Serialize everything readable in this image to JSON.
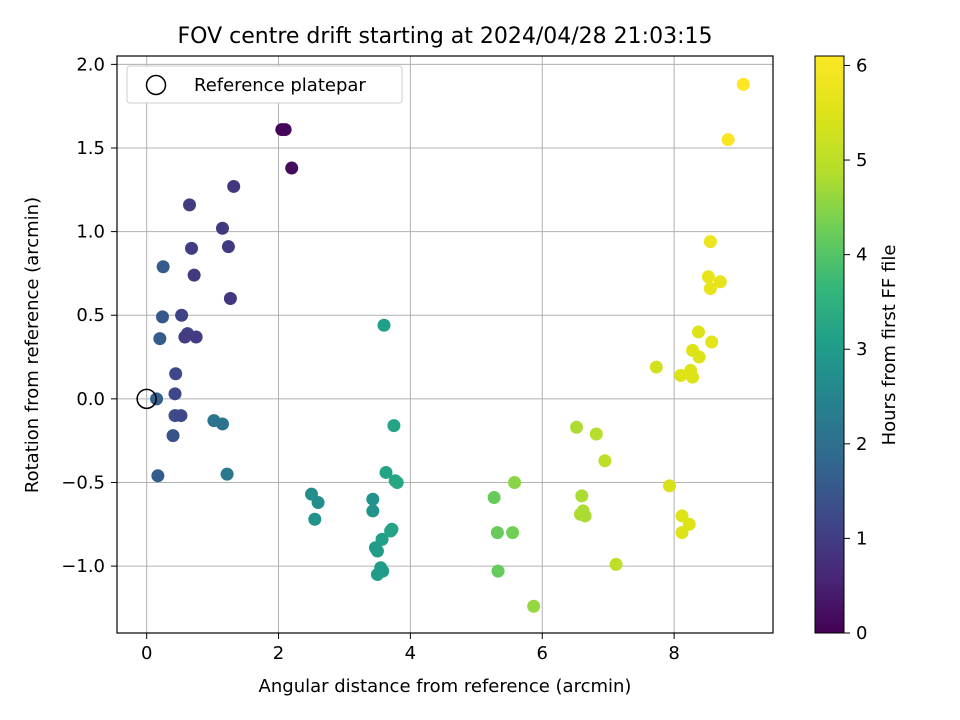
{
  "chart_data": {
    "type": "scatter",
    "title": "FOV centre drift starting at 2024/04/28 21:03:15",
    "xlabel": "Angular distance from reference (arcmin)",
    "ylabel": "Rotation from reference (arcmin)",
    "xlim": [
      -0.45,
      9.5
    ],
    "ylim": [
      -1.4,
      2.05
    ],
    "xticks": [
      0,
      2,
      4,
      6,
      8
    ],
    "xtick_labels": [
      "0",
      "2",
      "4",
      "6",
      "8"
    ],
    "yticks": [
      -1.0,
      -0.5,
      0.0,
      0.5,
      1.0,
      1.5,
      2.0
    ],
    "ytick_labels": [
      "−1.0",
      "−0.5",
      "0.0",
      "0.5",
      "1.0",
      "1.5",
      "2.0"
    ],
    "grid": true,
    "legend": {
      "position": "top-left",
      "entries": [
        {
          "label": "Reference platepar",
          "marker": "open-circle"
        }
      ]
    },
    "reference_point": {
      "x": 0,
      "y": 0
    },
    "colorbar": {
      "label": "Hours from first FF file",
      "colormap": "viridis",
      "range": [
        0,
        6.1
      ],
      "ticks": [
        0,
        1,
        2,
        3,
        4,
        5,
        6
      ],
      "tick_labels": [
        "0",
        "1",
        "2",
        "3",
        "4",
        "5",
        "6"
      ]
    },
    "series": [
      {
        "points": [
          {
            "x": 2.05,
            "y": 1.61,
            "t": 0.05
          },
          {
            "x": 2.1,
            "y": 1.61,
            "t": 0.08
          },
          {
            "x": 2.2,
            "y": 1.38,
            "t": 0.15
          },
          {
            "x": 1.32,
            "y": 1.27,
            "t": 0.9
          },
          {
            "x": 0.65,
            "y": 1.16,
            "t": 1.0
          },
          {
            "x": 1.15,
            "y": 1.02,
            "t": 0.95
          },
          {
            "x": 1.24,
            "y": 0.91,
            "t": 0.95
          },
          {
            "x": 0.68,
            "y": 0.9,
            "t": 1.0
          },
          {
            "x": 0.72,
            "y": 0.74,
            "t": 0.95
          },
          {
            "x": 1.27,
            "y": 0.6,
            "t": 0.9
          },
          {
            "x": 0.53,
            "y": 0.5,
            "t": 1.1
          },
          {
            "x": 0.62,
            "y": 0.39,
            "t": 1.1
          },
          {
            "x": 0.58,
            "y": 0.37,
            "t": 1.0
          },
          {
            "x": 0.75,
            "y": 0.37,
            "t": 1.0
          },
          {
            "x": 0.25,
            "y": 0.79,
            "t": 1.6
          },
          {
            "x": 0.24,
            "y": 0.49,
            "t": 1.5
          },
          {
            "x": 0.2,
            "y": 0.36,
            "t": 1.6
          },
          {
            "x": 0.44,
            "y": 0.15,
            "t": 1.2
          },
          {
            "x": 0.43,
            "y": 0.03,
            "t": 1.2
          },
          {
            "x": 0.15,
            "y": 0.0,
            "t": 1.7
          },
          {
            "x": 0.43,
            "y": -0.1,
            "t": 1.3
          },
          {
            "x": 0.52,
            "y": -0.1,
            "t": 1.2
          },
          {
            "x": 0.4,
            "y": -0.22,
            "t": 1.4
          },
          {
            "x": 0.17,
            "y": -0.46,
            "t": 1.6
          },
          {
            "x": 1.02,
            "y": -0.13,
            "t": 2.1
          },
          {
            "x": 1.15,
            "y": -0.15,
            "t": 2.1
          },
          {
            "x": 1.22,
            "y": -0.45,
            "t": 2.2
          },
          {
            "x": 3.6,
            "y": 0.44,
            "t": 3.1
          },
          {
            "x": 3.75,
            "y": -0.16,
            "t": 3.2
          },
          {
            "x": 3.63,
            "y": -0.44,
            "t": 3.2
          },
          {
            "x": 3.77,
            "y": -0.49,
            "t": 3.2
          },
          {
            "x": 3.8,
            "y": -0.5,
            "t": 3.3
          },
          {
            "x": 2.5,
            "y": -0.57,
            "t": 2.7
          },
          {
            "x": 2.6,
            "y": -0.62,
            "t": 2.7
          },
          {
            "x": 2.55,
            "y": -0.72,
            "t": 2.8
          },
          {
            "x": 3.43,
            "y": -0.6,
            "t": 2.8
          },
          {
            "x": 3.43,
            "y": -0.67,
            "t": 2.8
          },
          {
            "x": 3.72,
            "y": -0.78,
            "t": 3.2
          },
          {
            "x": 3.7,
            "y": -0.79,
            "t": 3.2
          },
          {
            "x": 3.57,
            "y": -0.84,
            "t": 3.1
          },
          {
            "x": 3.47,
            "y": -0.89,
            "t": 3.0
          },
          {
            "x": 3.5,
            "y": -0.91,
            "t": 3.0
          },
          {
            "x": 3.55,
            "y": -1.01,
            "t": 3.0
          },
          {
            "x": 3.58,
            "y": -1.03,
            "t": 3.0
          },
          {
            "x": 3.5,
            "y": -1.05,
            "t": 3.0
          },
          {
            "x": 5.58,
            "y": -0.5,
            "t": 4.5
          },
          {
            "x": 5.27,
            "y": -0.59,
            "t": 4.2
          },
          {
            "x": 5.32,
            "y": -0.8,
            "t": 4.2
          },
          {
            "x": 5.55,
            "y": -0.8,
            "t": 4.3
          },
          {
            "x": 5.33,
            "y": -1.03,
            "t": 4.2
          },
          {
            "x": 5.87,
            "y": -1.24,
            "t": 4.6
          },
          {
            "x": 6.52,
            "y": -0.17,
            "t": 4.8
          },
          {
            "x": 6.82,
            "y": -0.21,
            "t": 4.9
          },
          {
            "x": 6.95,
            "y": -0.37,
            "t": 5.0
          },
          {
            "x": 6.6,
            "y": -0.58,
            "t": 4.8
          },
          {
            "x": 6.62,
            "y": -0.67,
            "t": 4.8
          },
          {
            "x": 6.58,
            "y": -0.69,
            "t": 4.8
          },
          {
            "x": 6.65,
            "y": -0.7,
            "t": 4.8
          },
          {
            "x": 7.12,
            "y": -0.99,
            "t": 5.0
          },
          {
            "x": 7.73,
            "y": 0.19,
            "t": 5.3
          },
          {
            "x": 7.93,
            "y": -0.52,
            "t": 5.4
          },
          {
            "x": 8.12,
            "y": -0.7,
            "t": 5.5
          },
          {
            "x": 8.12,
            "y": -0.8,
            "t": 5.5
          },
          {
            "x": 8.23,
            "y": -0.75,
            "t": 5.5
          },
          {
            "x": 8.1,
            "y": 0.14,
            "t": 5.5
          },
          {
            "x": 8.25,
            "y": 0.17,
            "t": 5.5
          },
          {
            "x": 8.28,
            "y": 0.13,
            "t": 5.5
          },
          {
            "x": 8.28,
            "y": 0.29,
            "t": 5.5
          },
          {
            "x": 8.38,
            "y": 0.25,
            "t": 5.5
          },
          {
            "x": 8.37,
            "y": 0.4,
            "t": 5.5
          },
          {
            "x": 8.57,
            "y": 0.34,
            "t": 5.6
          },
          {
            "x": 8.52,
            "y": 0.73,
            "t": 5.7
          },
          {
            "x": 8.55,
            "y": 0.66,
            "t": 5.7
          },
          {
            "x": 8.7,
            "y": 0.7,
            "t": 5.7
          },
          {
            "x": 8.55,
            "y": 0.94,
            "t": 5.8
          },
          {
            "x": 8.82,
            "y": 1.55,
            "t": 6.0
          },
          {
            "x": 9.05,
            "y": 1.88,
            "t": 6.1
          }
        ]
      }
    ]
  }
}
